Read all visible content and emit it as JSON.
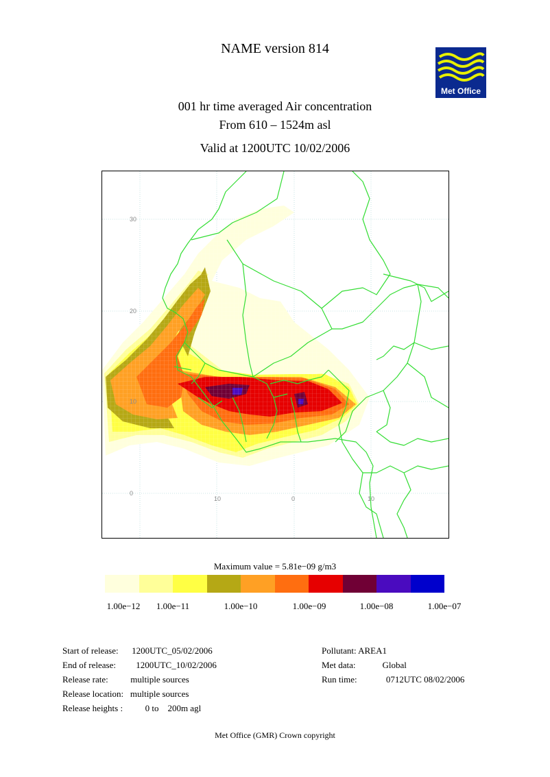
{
  "title": "NAME version 814",
  "subtitle_line1": "001 hr time averaged   Air concentration",
  "subtitle_line2": "From   610 –   1524m asl",
  "valid": "Valid at 1200UTC 10/02/2006",
  "logo_text": "Met Office",
  "logo_color": "#0b2a8f",
  "map": {
    "lat_labels": [
      "30",
      "20",
      "10",
      "0"
    ],
    "lon_labels": [
      "10",
      "0",
      "10"
    ],
    "border_color": "#33dd33",
    "grid_color": "#b8dcdc"
  },
  "max_value": "Maximum value = 5.81e−09 g/m3",
  "colorbar": {
    "colors": [
      "#ffffdd",
      "#ffff99",
      "#ffff44",
      "#b5a815",
      "#ffa024",
      "#ff6e10",
      "#e60000",
      "#700035",
      "#4a0bbf",
      "#0000cc"
    ],
    "labels": [
      "1.00e−12",
      "1.00e−11",
      "1.00e−10",
      "1.00e−09",
      "1.00e−08",
      "1.00e−07"
    ]
  },
  "info_left": [
    "Start of release:      1200UTC_05/02/2006",
    "End of release:         1200UTC_10/02/2006",
    "Release rate:          multiple sources",
    "Release location:   multiple sources",
    "Release heights :          0 to    200m agl"
  ],
  "info_right": [
    "Pollutant: AREA1",
    "Met data:            Global",
    "Run time:             0712UTC 08/02/2006"
  ],
  "footer": "Met Office (GMR)  Crown copyright"
}
